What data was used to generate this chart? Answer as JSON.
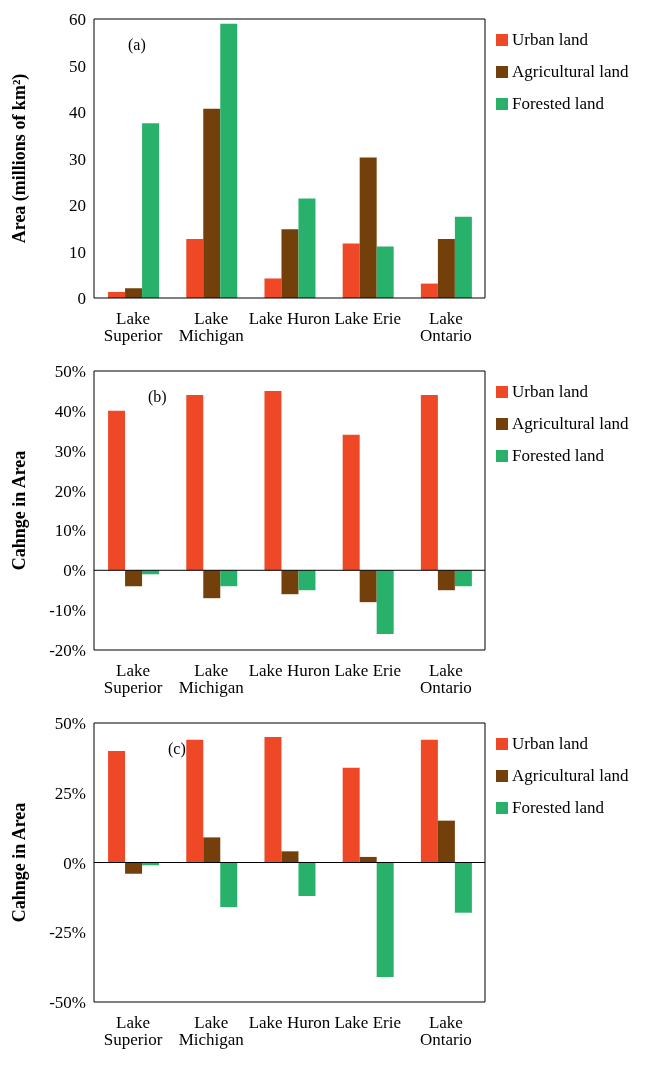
{
  "chart_data": [
    {
      "type": "bar",
      "categories": [
        "Lake Superior",
        "Lake Michigan",
        "Lake Huron",
        "Lake Erie",
        "Lake Ontario"
      ],
      "ylabel": "Area (millions of km²)",
      "annotations": [
        "(a)"
      ],
      "ylim": [
        0,
        60
      ],
      "yticks": [
        0,
        10,
        20,
        30,
        40,
        50,
        60
      ],
      "grid": false,
      "legend": "top right",
      "series": [
        {
          "name": "Urban land",
          "color": "#ee4827",
          "values": [
            1.3,
            12.7,
            4.2,
            11.7,
            3.1
          ]
        },
        {
          "name": "Agricultural land",
          "color": "#733f0b",
          "values": [
            2.1,
            40.7,
            14.8,
            30.2,
            12.7
          ]
        },
        {
          "name": "Forested land",
          "color": "#28b16a",
          "values": [
            37.6,
            59.0,
            21.4,
            11.1,
            17.5
          ]
        }
      ]
    },
    {
      "type": "bar",
      "categories": [
        "Lake Superior",
        "Lake Michigan",
        "Lake Huron",
        "Lake Erie",
        "Lake Ontario"
      ],
      "ylabel": "Cahnge in Area",
      "annotations": [
        "(b)"
      ],
      "ylim": [
        -20,
        50
      ],
      "yticks": [
        {
          "value": -20,
          "label": "-20%"
        },
        {
          "value": -10,
          "label": "-10%"
        },
        {
          "value": 0,
          "label": "0%"
        },
        {
          "value": 10,
          "label": "10%"
        },
        {
          "value": 20,
          "label": "20%"
        },
        {
          "value": 30,
          "label": "30%"
        },
        {
          "value": 40,
          "label": "40%"
        },
        {
          "value": 50,
          "label": "50%"
        }
      ],
      "grid": false,
      "legend": "top right",
      "ref_lines": [
        {
          "axis": "y",
          "value": 0,
          "label": null,
          "color": "#000000"
        }
      ],
      "series": [
        {
          "name": "Urban land",
          "color": "#ee4827",
          "values": [
            40,
            44,
            45,
            34,
            44
          ]
        },
        {
          "name": "Agricultural land",
          "color": "#733f0b",
          "values": [
            -4,
            -7,
            -6,
            -8,
            -5
          ]
        },
        {
          "name": "Forested land",
          "color": "#28b16a",
          "values": [
            -1,
            -4,
            -5,
            -16,
            -4
          ]
        }
      ]
    },
    {
      "type": "bar",
      "categories": [
        "Lake Superior",
        "Lake Michigan",
        "Lake Huron",
        "Lake Erie",
        "Lake Ontario"
      ],
      "ylabel": "Cahnge in Area",
      "annotations": [
        "(c)"
      ],
      "ylim": [
        -50,
        50
      ],
      "yticks": [
        {
          "value": -50,
          "label": "-50%"
        },
        {
          "value": -25,
          "label": "-25%"
        },
        {
          "value": 0,
          "label": "0%"
        },
        {
          "value": 25,
          "label": "25%"
        },
        {
          "value": 50,
          "label": "50%"
        }
      ],
      "grid": false,
      "legend": "top right",
      "ref_lines": [
        {
          "axis": "y",
          "value": 0,
          "label": null,
          "color": "#000000"
        }
      ],
      "series": [
        {
          "name": "Urban land",
          "color": "#ee4827",
          "values": [
            40,
            44,
            45,
            34,
            44
          ]
        },
        {
          "name": "Agricultural land",
          "color": "#733f0b",
          "values": [
            -4,
            9,
            4,
            2,
            15
          ]
        },
        {
          "name": "Forested land",
          "color": "#28b16a",
          "values": [
            -1,
            -16,
            -12,
            -41,
            -18
          ]
        }
      ]
    }
  ]
}
